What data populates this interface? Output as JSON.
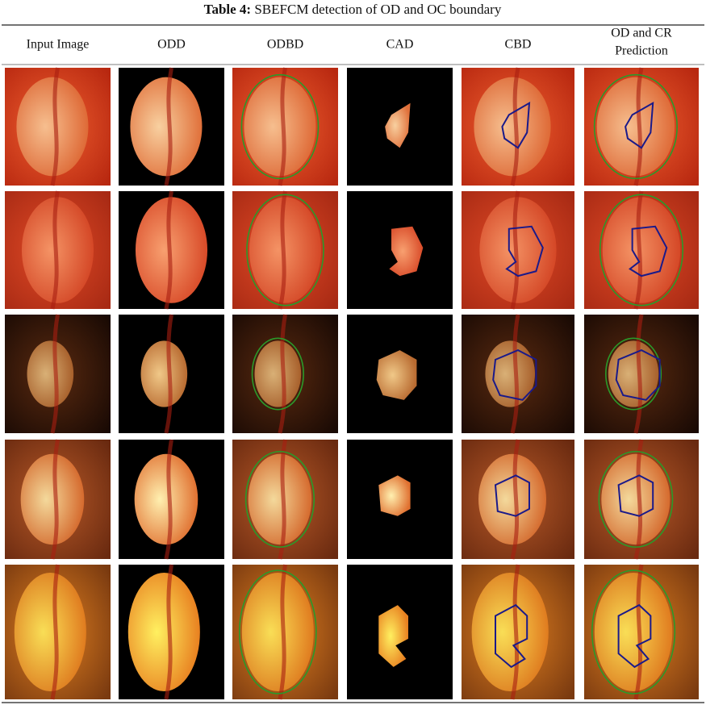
{
  "table": {
    "title_label": "Table 4:",
    "title_text": "SBEFCM detection of OD and OC boundary",
    "headers": [
      [
        "Input Image"
      ],
      [
        "ODD"
      ],
      [
        "ODBD"
      ],
      [
        "CAD"
      ],
      [
        "CBD"
      ],
      [
        "OD and CR",
        "Prediction"
      ]
    ]
  }
}
